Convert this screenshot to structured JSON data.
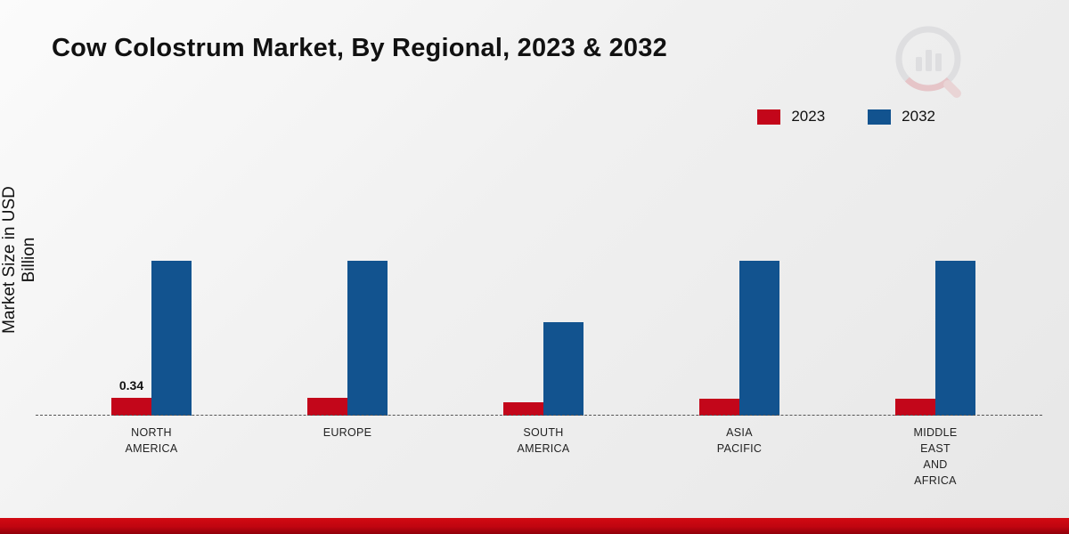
{
  "title": "Cow Colostrum Market, By Regional, 2023 & 2032",
  "y_axis_label": "Market Size in USD Billion",
  "legend": {
    "items": [
      {
        "label": "2023",
        "color": "#c3061a"
      },
      {
        "label": "2032",
        "color": "#12538f"
      }
    ]
  },
  "logo": {
    "name": "market-research-logo"
  },
  "chart_data": {
    "type": "bar",
    "title": "Cow Colostrum Market, By Regional, 2023 & 2032",
    "xlabel": "",
    "ylabel": "Market Size in USD Billion",
    "ylim": [
      0,
      3.5
    ],
    "grid": false,
    "legend_position": "top-right",
    "categories": [
      "NORTH\nAMERICA",
      "EUROPE",
      "SOUTH\nAMERICA",
      "ASIA\nPACIFIC",
      "MIDDLE\nEAST\nAND\nAFRICA"
    ],
    "series": [
      {
        "name": "2023",
        "color": "#c3061a",
        "values": [
          0.34,
          0.33,
          0.25,
          0.31,
          0.31
        ]
      },
      {
        "name": "2032",
        "color": "#12538f",
        "values": [
          2.9,
          2.9,
          1.75,
          2.9,
          2.9
        ]
      }
    ],
    "data_labels": [
      {
        "series": "2023",
        "category_index": 0,
        "text": "0.34"
      }
    ]
  }
}
